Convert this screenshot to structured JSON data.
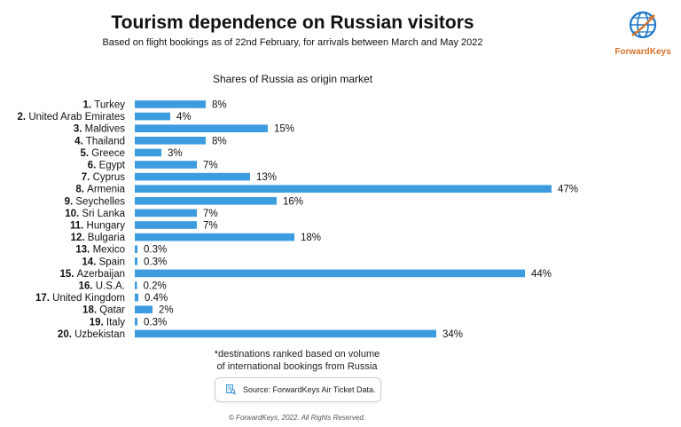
{
  "title": "Tourism dependence on Russian visitors",
  "subtitle": "Based on flight bookings as of 22nd February, for arrivals between March and May 2022",
  "logo": {
    "text": "ForwardKeys"
  },
  "footnote_line1": "*destinations ranked based on volume",
  "footnote_line2": "of international bookings from Russia",
  "source": "Source: ForwardKeys Air Ticket Data.",
  "copyright": "© ForwardKeys, 2022. All Rights Reserved.",
  "colors": {
    "bar": "#3d9be0",
    "logo_orange": "#d4722a",
    "logo_blue": "#1f77c8"
  },
  "chart_data": {
    "type": "bar",
    "orientation": "horizontal",
    "title": "Shares of Russia as origin market",
    "categories": [
      {
        "rank": "1.",
        "name": "Turkey"
      },
      {
        "rank": "2.",
        "name": "United Arab Emirates"
      },
      {
        "rank": "3.",
        "name": "Maldives"
      },
      {
        "rank": "4.",
        "name": "Thailand"
      },
      {
        "rank": "5.",
        "name": "Greece"
      },
      {
        "rank": "6.",
        "name": "Egypt"
      },
      {
        "rank": "7.",
        "name": "Cyprus"
      },
      {
        "rank": "8.",
        "name": "Armenia"
      },
      {
        "rank": "9.",
        "name": "Seychelles"
      },
      {
        "rank": "10.",
        "name": "Sri Lanka"
      },
      {
        "rank": "11.",
        "name": "Hungary"
      },
      {
        "rank": "12.",
        "name": "Bulgaria"
      },
      {
        "rank": "13.",
        "name": "Mexico"
      },
      {
        "rank": "14.",
        "name": "Spain"
      },
      {
        "rank": "15.",
        "name": "Azerbaijan"
      },
      {
        "rank": "16.",
        "name": "U.S.A."
      },
      {
        "rank": "17.",
        "name": "United Kingdom"
      },
      {
        "rank": "18.",
        "name": "Qatar"
      },
      {
        "rank": "19.",
        "name": "Italy"
      },
      {
        "rank": "20.",
        "name": "Uzbekistan"
      }
    ],
    "values": [
      8,
      4,
      15,
      8,
      3,
      7,
      13,
      47,
      16,
      7,
      7,
      18,
      0.3,
      0.3,
      44,
      0.2,
      0.4,
      2,
      0.3,
      34
    ],
    "value_labels": [
      "8%",
      "4%",
      "15%",
      "8%",
      "3%",
      "7%",
      "13%",
      "47%",
      "16%",
      "7%",
      "7%",
      "18%",
      "0.3%",
      "0.3%",
      "44%",
      "0.2%",
      "0.4%",
      "2%",
      "0.3%",
      "34%"
    ],
    "unit": "%",
    "xlim": [
      0,
      50
    ],
    "grid": false,
    "legend": "none"
  }
}
